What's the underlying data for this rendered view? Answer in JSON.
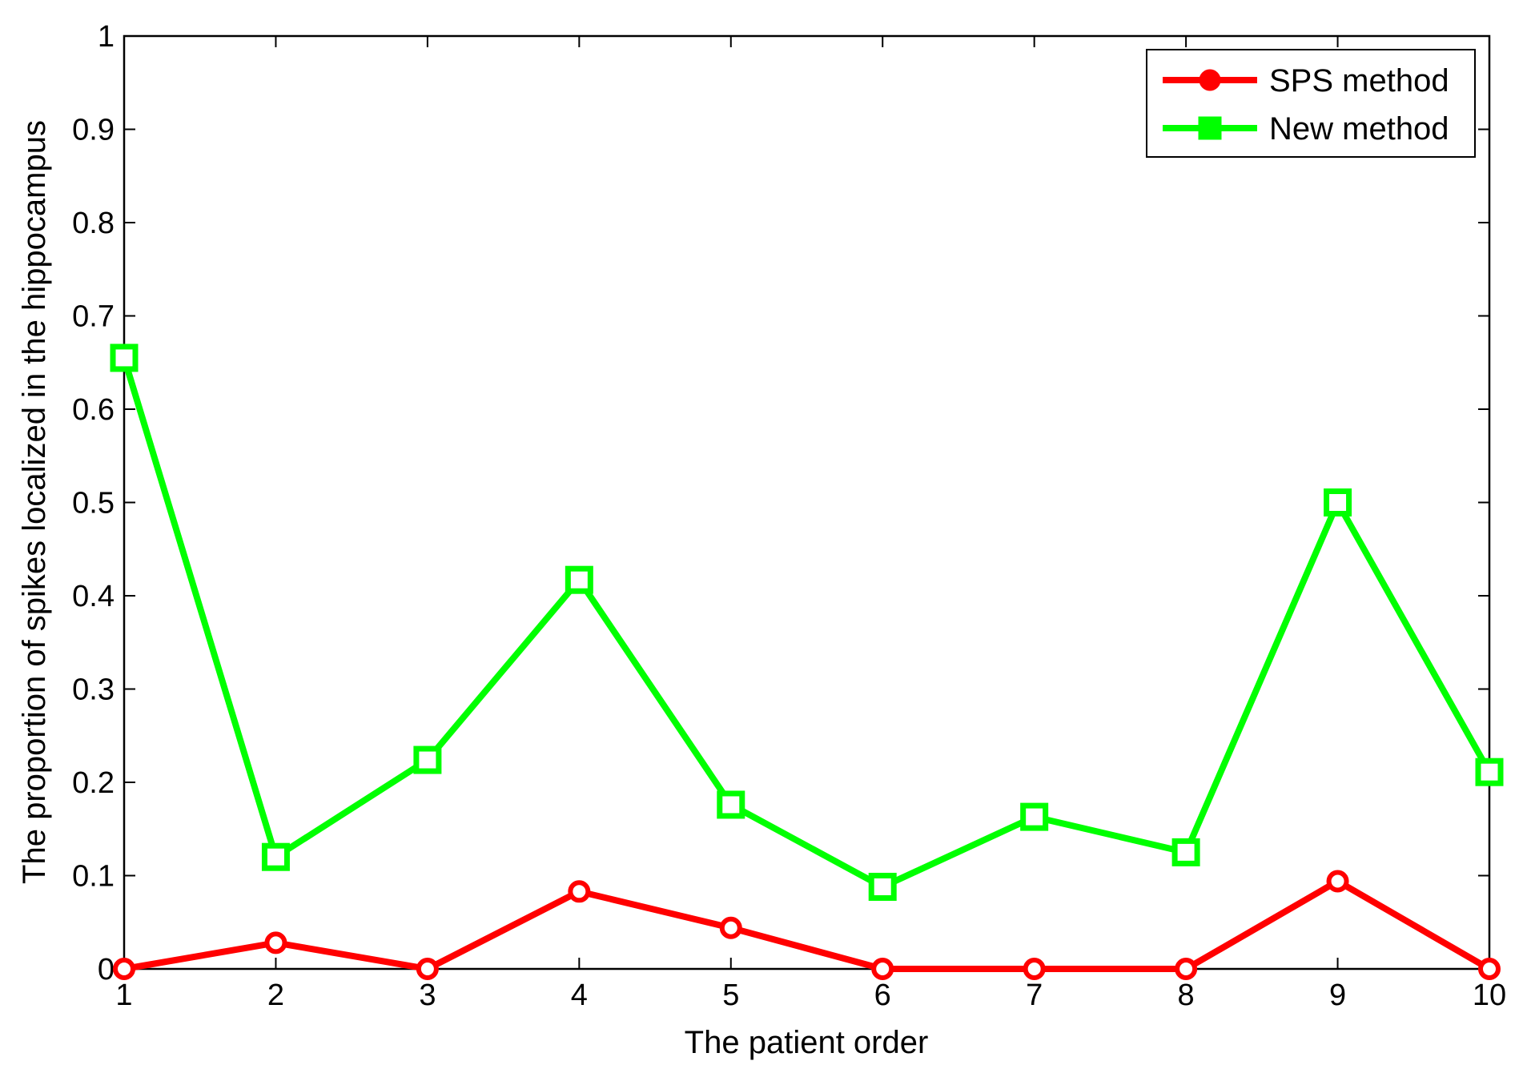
{
  "chart_data": {
    "type": "line",
    "title": "",
    "xlabel": "The patient order",
    "ylabel": "The proportion of spikes localized in the hippocampus",
    "x": [
      1,
      2,
      3,
      4,
      5,
      6,
      7,
      8,
      9,
      10
    ],
    "xlim": [
      1,
      10
    ],
    "ylim": [
      0,
      1
    ],
    "xticks": [
      "1",
      "2",
      "3",
      "4",
      "5",
      "6",
      "7",
      "8",
      "9",
      "10"
    ],
    "yticks": [
      "0",
      "0.1",
      "0.2",
      "0.3",
      "0.4",
      "0.5",
      "0.6",
      "0.7",
      "0.8",
      "0.9",
      "1"
    ],
    "grid": false,
    "legend_position": "top-right",
    "series": [
      {
        "name": "SPS method",
        "color": "#ff0000",
        "marker": "circle",
        "values": [
          0,
          0.028,
          0,
          0.083,
          0.044,
          0,
          0,
          0,
          0.094,
          0
        ]
      },
      {
        "name": "New method",
        "color": "#00ff00",
        "marker": "square",
        "values": [
          0.655,
          0.12,
          0.224,
          0.417,
          0.176,
          0.088,
          0.163,
          0.125,
          0.5,
          0.211
        ]
      }
    ]
  }
}
